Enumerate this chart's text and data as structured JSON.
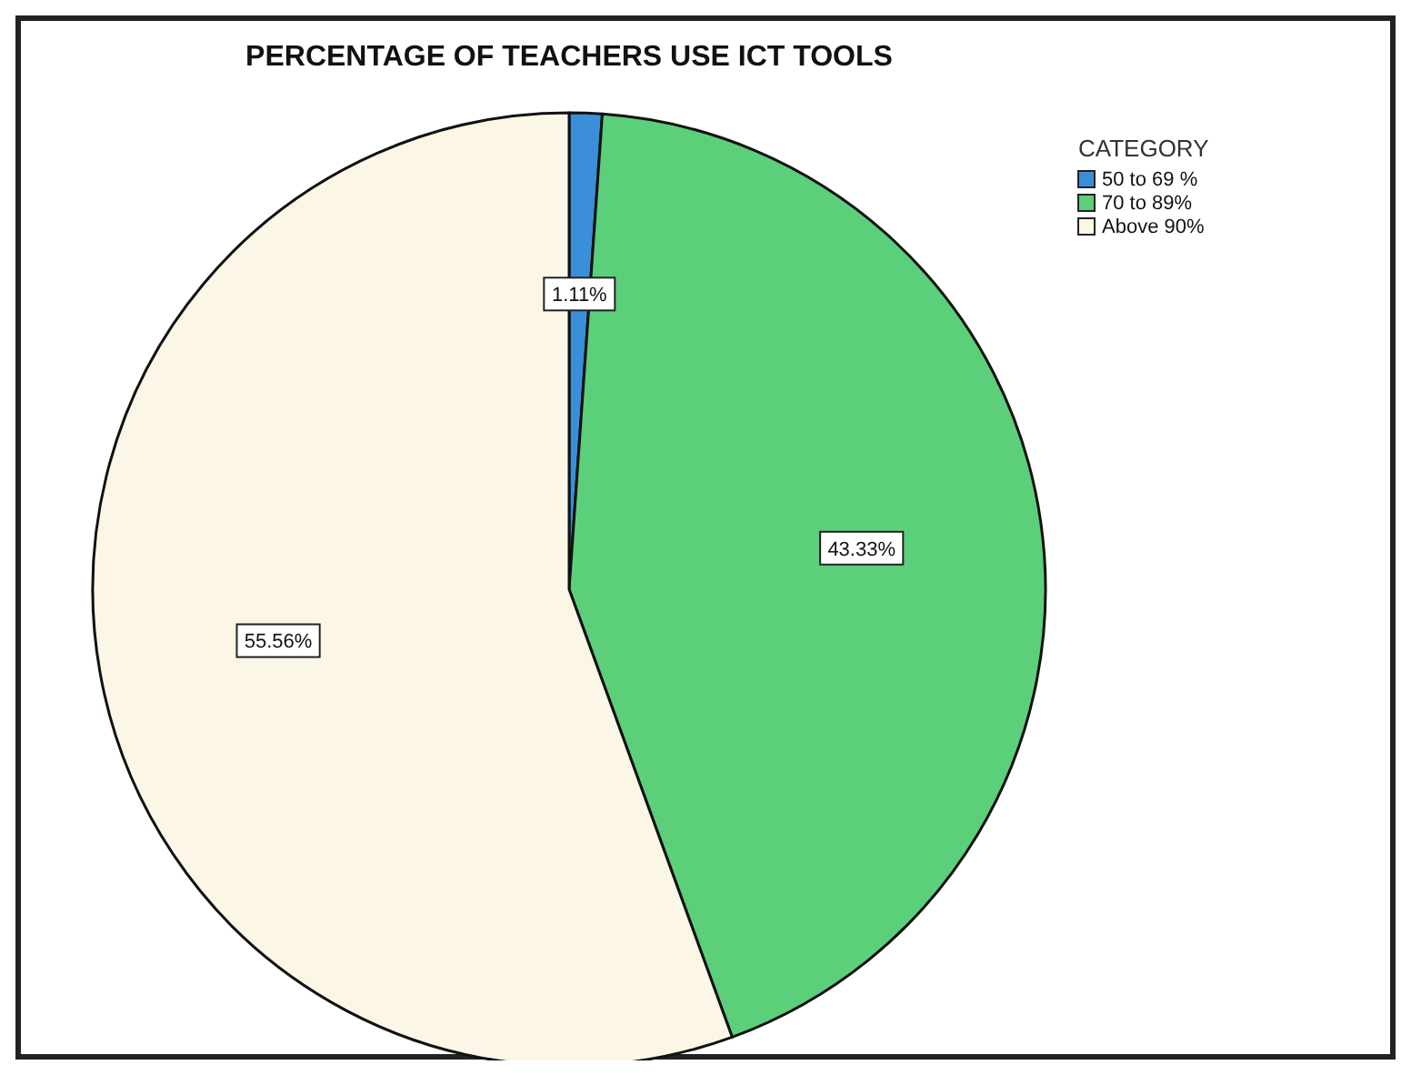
{
  "chart_data": {
    "type": "pie",
    "title": "PERCENTAGE OF TEACHERS USE ICT TOOLS",
    "legend_title": "CATEGORY",
    "categories": [
      "50 to 69 %",
      "70 to 89%",
      "Above 90%"
    ],
    "values": [
      1.11,
      43.33,
      55.56
    ],
    "value_labels": [
      "1.11%",
      "43.33%",
      "55.56%"
    ],
    "colors": [
      "#3a8fd8",
      "#5ccf7a",
      "#fbf6e6"
    ],
    "legend": "top right"
  }
}
